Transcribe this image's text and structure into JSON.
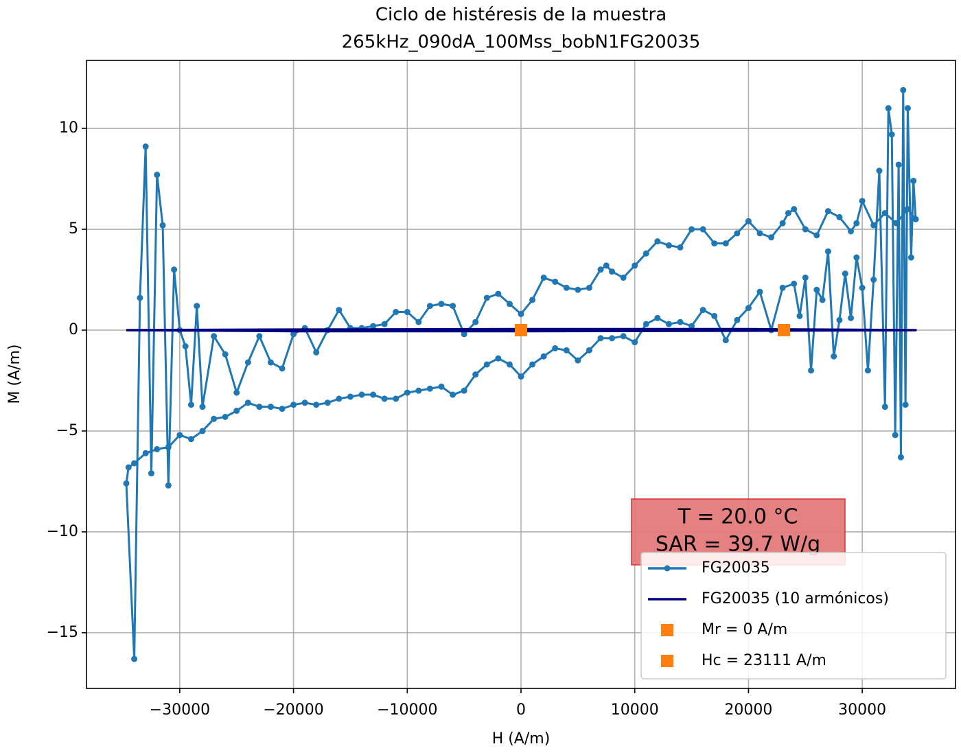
{
  "chart_data": {
    "type": "line",
    "title": [
      "Ciclo de histéresis de la muestra",
      "265kHz_090dA_100Mss_bobN1FG20035"
    ],
    "xlabel": "H (A/m)",
    "ylabel": "M (A/m)",
    "annotation": [
      "T = 20.0 °C",
      "SAR = 39.7 W/g"
    ],
    "xlim": [
      -38200,
      38200
    ],
    "ylim": [
      -17.76,
      13.37
    ],
    "xticks": [
      {
        "value": -30000,
        "label": "−30000"
      },
      {
        "value": -20000,
        "label": "−20000"
      },
      {
        "value": -10000,
        "label": "−10000"
      },
      0,
      10000,
      20000,
      30000
    ],
    "yticks": [
      {
        "value": -15,
        "label": "−15"
      },
      {
        "value": -10,
        "label": "−10"
      },
      {
        "value": -5,
        "label": "−5"
      },
      0,
      5,
      10
    ],
    "grid": true,
    "legend": "lower right",
    "series": [
      {
        "name": "FG20035",
        "color": "#1f77b4",
        "marker": "circle",
        "line": true,
        "x": [
          34700,
          34000,
          33000,
          32000,
          31000,
          30000,
          29500,
          29000,
          28000,
          27000,
          26000,
          25000,
          24000,
          23500,
          23000,
          22000,
          21000,
          20000,
          19000,
          18000,
          17000,
          16000,
          15000,
          14000,
          13000,
          12000,
          11000,
          10000,
          9000,
          8000,
          7500,
          7000,
          6000,
          5000,
          4000,
          3000,
          2000,
          1000,
          0,
          -1000,
          -2000,
          -3000,
          -4000,
          -5000,
          -6000,
          -7000,
          -8000,
          -9000,
          -10000,
          -11000,
          -12000,
          -13000,
          -14000,
          -15000,
          -16000,
          -17000,
          -18000,
          -19000,
          -20000,
          -21000,
          -22000,
          -23000,
          -24000,
          -25000,
          -26000,
          -27000,
          -28000,
          -28500,
          -29000,
          -29500,
          -30000,
          -30500,
          -31000,
          -31500,
          -32000,
          -32500,
          -33000,
          -33500,
          -34000,
          -34700,
          -34500,
          -34000,
          -33000,
          -32000,
          -31000,
          -30000,
          -29000,
          -28000,
          -27000,
          -26000,
          -25000,
          -24000,
          -23000,
          -22000,
          -21000,
          -20000,
          -19000,
          -18000,
          -17000,
          -16000,
          -15000,
          -14000,
          -13000,
          -12000,
          -11000,
          -10000,
          -9000,
          -8000,
          -7000,
          -6000,
          -5000,
          -4000,
          -3000,
          -2000,
          -1000,
          0,
          1000,
          2000,
          3000,
          4000,
          5000,
          6000,
          7000,
          8000,
          9000,
          10000,
          11000,
          12000,
          13000,
          14000,
          15000,
          16000,
          17000,
          18000,
          19000,
          20000,
          21000,
          22000,
          23000,
          24000,
          24500,
          25000,
          25500,
          26000,
          26500,
          27000,
          27500,
          28000,
          28500,
          29000,
          29500,
          30000,
          30500,
          31000,
          31500,
          32000,
          32300,
          32600,
          32900,
          33200,
          33400,
          33600,
          33800,
          34000,
          34300,
          34500,
          34700
        ],
        "y": [
          5.5,
          6.0,
          5.3,
          5.8,
          5.2,
          6.4,
          5.3,
          4.9,
          5.6,
          5.9,
          4.7,
          5.0,
          6.0,
          5.8,
          5.3,
          4.6,
          4.8,
          5.4,
          4.8,
          4.3,
          4.3,
          5.0,
          5.0,
          4.1,
          4.2,
          4.4,
          3.8,
          3.2,
          2.6,
          2.9,
          3.2,
          3.0,
          2.1,
          2.0,
          2.1,
          2.4,
          2.6,
          1.5,
          0.8,
          1.3,
          1.8,
          1.6,
          0.4,
          -0.2,
          1.2,
          1.3,
          1.2,
          0.4,
          0.9,
          0.9,
          0.3,
          0.2,
          0.1,
          0.1,
          1.0,
          0.0,
          -1.1,
          0.1,
          -0.2,
          -1.9,
          -1.6,
          -0.3,
          -1.6,
          -3.1,
          -1.2,
          -0.3,
          -3.8,
          1.2,
          -3.7,
          -0.8,
          0.0,
          3.0,
          -7.7,
          5.2,
          7.7,
          -7.1,
          9.1,
          1.6,
          -16.3,
          -7.6,
          -6.8,
          -6.6,
          -6.1,
          -5.9,
          -5.8,
          -5.2,
          -5.4,
          -5.0,
          -4.4,
          -4.3,
          -4.0,
          -3.6,
          -3.8,
          -3.8,
          -3.9,
          -3.7,
          -3.6,
          -3.7,
          -3.6,
          -3.4,
          -3.3,
          -3.2,
          -3.2,
          -3.4,
          -3.4,
          -3.1,
          -3.0,
          -2.9,
          -2.8,
          -3.2,
          -3.0,
          -2.2,
          -1.7,
          -1.4,
          -1.7,
          -2.3,
          -1.7,
          -1.3,
          -0.9,
          -1.0,
          -1.5,
          -1.0,
          -0.4,
          -0.4,
          -0.3,
          -0.6,
          0.3,
          0.6,
          0.3,
          0.4,
          0.2,
          1.0,
          0.7,
          -0.5,
          0.5,
          1.1,
          1.9,
          0.0,
          2.1,
          2.3,
          0.7,
          2.6,
          -2.0,
          2.0,
          1.5,
          3.9,
          -1.3,
          0.5,
          2.8,
          0.6,
          3.6,
          2.1,
          -2.0,
          2.5,
          7.9,
          -3.8,
          11.0,
          9.7,
          -5.2,
          8.2,
          -6.3,
          11.9,
          -3.7,
          11.0,
          3.6,
          7.4,
          5.5
        ]
      },
      {
        "name": "FG20035 (10 armónicos)",
        "color": "#000080",
        "marker": "none",
        "line": true,
        "x": [
          -34700,
          -20000,
          0,
          20000,
          34700,
          20000,
          0,
          -20000,
          -34700
        ],
        "y": [
          0,
          0.03,
          0.05,
          0.05,
          0,
          -0.03,
          -0.05,
          -0.05,
          0
        ]
      },
      {
        "name": "Mr = 0 A/m",
        "color": "#ff7f0e",
        "marker": "square",
        "line": false,
        "x": [
          0
        ],
        "y": [
          0
        ]
      },
      {
        "name": "Hc = 23111 A/m",
        "color": "#ff7f0e",
        "marker": "square",
        "line": false,
        "x": [
          23111
        ],
        "y": [
          0
        ]
      }
    ]
  }
}
